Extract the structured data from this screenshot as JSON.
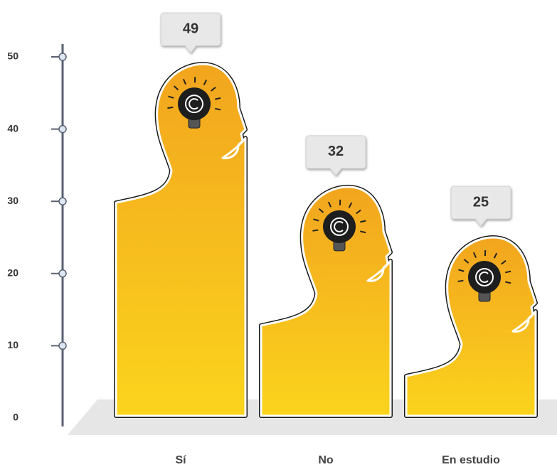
{
  "chart_data": {
    "type": "bar",
    "categories": [
      "Sí",
      "No",
      "En estudio"
    ],
    "values": [
      49,
      32,
      25
    ],
    "ylim": [
      0,
      50
    ],
    "yticks": [
      0,
      10,
      20,
      30,
      40,
      50
    ],
    "color_top": "#f2a51e",
    "color_bottom": "#fbd41d"
  }
}
